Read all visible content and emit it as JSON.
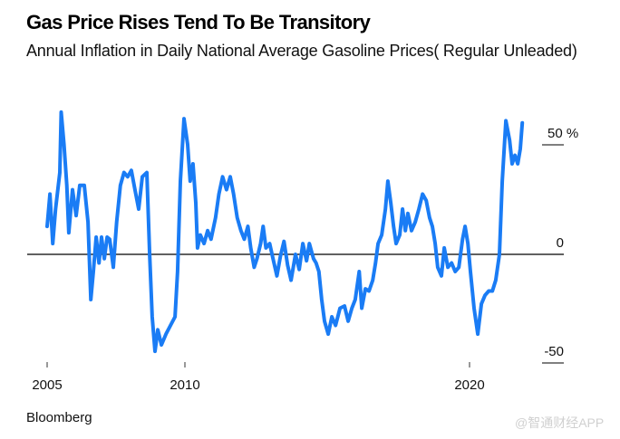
{
  "header": {
    "title": "Gas Price Rises Tend To Be Transitory",
    "subtitle": "Annual Inflation in Daily National Average Gasoline Prices( Regular Unleaded)"
  },
  "footer": {
    "source": "Bloomberg",
    "watermark": "@智通财经APP"
  },
  "colors": {
    "line": "#1a7cf5",
    "axis": "#000000"
  },
  "chart_data": {
    "type": "line",
    "title": "Gas Price Rises Tend To Be Transitory",
    "subtitle": "Annual Inflation in Daily National Average Gasoline Prices( Regular Unleaded)",
    "xlabel": "",
    "ylabel": "%",
    "xlim": [
      2004.3,
      2023.3
    ],
    "ylim": [
      -50,
      50
    ],
    "x_ticks": [
      2005,
      2010,
      2020
    ],
    "x_tick_labels": [
      "2005",
      "2010",
      "2020"
    ],
    "y_ticks": [
      50,
      0,
      -50
    ],
    "y_tick_labels": [
      "50 %",
      "0",
      "-50"
    ],
    "y_axis_side": "right",
    "grid": false,
    "zero_line": true,
    "series": [
      {
        "name": "Annual inflation, regular unleaded gasoline",
        "x": [
          2005.0,
          2005.1,
          2005.2,
          2005.3,
          2005.45,
          2005.5,
          2005.6,
          2005.7,
          2005.77,
          2005.9,
          2006.03,
          2006.16,
          2006.32,
          2006.45,
          2006.55,
          2006.64,
          2006.74,
          2006.84,
          2006.93,
          2007.03,
          2007.13,
          2007.22,
          2007.35,
          2007.47,
          2007.6,
          2007.73,
          2007.86,
          2007.99,
          2008.12,
          2008.25,
          2008.38,
          2008.54,
          2008.64,
          2008.73,
          2008.83,
          2008.93,
          2009.06,
          2009.22,
          2009.38,
          2009.54,
          2009.63,
          2009.73,
          2009.86,
          2009.99,
          2010.08,
          2010.18,
          2010.28,
          2010.34,
          2010.44,
          2010.57,
          2010.7,
          2010.82,
          2010.98,
          2011.1,
          2011.23,
          2011.37,
          2011.5,
          2011.62,
          2011.75,
          2011.88,
          2012.0,
          2012.13,
          2012.23,
          2012.35,
          2012.45,
          2012.58,
          2012.67,
          2012.77,
          2012.9,
          2013.02,
          2013.16,
          2013.28,
          2013.41,
          2013.54,
          2013.66,
          2013.82,
          2013.95,
          2014.08,
          2014.21,
          2014.31,
          2014.46,
          2014.55,
          2014.65,
          2014.75,
          2014.85,
          2014.98,
          2015.11,
          2015.24,
          2015.4,
          2015.56,
          2015.69,
          2015.82,
          2015.94,
          2016.08,
          2016.17,
          2016.3,
          2016.43,
          2016.56,
          2016.66,
          2016.75,
          2016.88,
          2017.01,
          2017.1,
          2017.2,
          2017.3,
          2017.39,
          2017.52,
          2017.62,
          2017.72,
          2017.81,
          2017.94,
          2018.07,
          2018.2,
          2018.33,
          2018.46,
          2018.58,
          2018.68,
          2018.78,
          2018.87,
          2019.0,
          2019.1,
          2019.23,
          2019.36,
          2019.49,
          2019.62,
          2019.75,
          2019.84,
          2019.94,
          2020.03,
          2020.16,
          2020.29,
          2020.42,
          2020.55,
          2020.68,
          2020.81,
          2020.93,
          2021.06,
          2021.16,
          2021.29,
          2021.42,
          2021.51,
          2021.61,
          2021.71,
          2021.8,
          2021.87
        ],
        "values": [
          13,
          28,
          5,
          21,
          38,
          66,
          51,
          32,
          10,
          30,
          18,
          32,
          32,
          15,
          -21,
          -8,
          8,
          -4,
          8,
          -2,
          8,
          7,
          -6,
          15,
          32,
          38,
          36,
          39,
          30,
          21,
          36,
          38,
          0,
          -29,
          -45,
          -35,
          -42,
          -37,
          -33,
          -29,
          -8,
          34,
          63,
          51,
          34,
          42,
          24,
          3,
          9,
          5,
          11,
          7,
          17,
          28,
          36,
          30,
          36,
          28,
          17,
          11,
          7,
          13,
          3,
          -6,
          -2,
          5,
          13,
          3,
          5,
          -2,
          -10,
          -1,
          6,
          -5,
          -12,
          0,
          -7,
          5,
          -3,
          5,
          -2,
          -4,
          -8,
          -21,
          -31,
          -37,
          -29,
          -33,
          -25,
          -24,
          -31,
          -25,
          -21,
          -8,
          -25,
          -16,
          -17,
          -12,
          -4,
          5,
          9,
          21,
          34,
          24,
          13,
          5,
          9,
          21,
          11,
          19,
          11,
          15,
          21,
          28,
          25,
          17,
          13,
          5,
          -6,
          -10,
          3,
          -6,
          -4,
          -8,
          -6,
          7,
          13,
          5,
          -8,
          -25,
          -37,
          -23,
          -19,
          -17,
          -17,
          -12,
          0,
          34,
          62,
          53,
          42,
          46,
          42,
          49,
          61
        ]
      }
    ]
  }
}
